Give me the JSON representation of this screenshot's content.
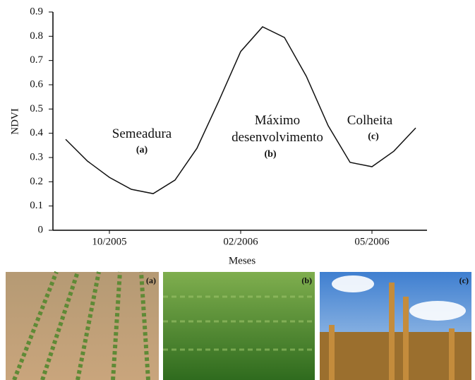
{
  "chart_data": {
    "type": "line",
    "y_label": "NDVI",
    "x_label": "Meses",
    "categories": [
      null,
      null,
      "10/2005",
      null,
      null,
      null,
      null,
      null,
      "02/2006",
      null,
      null,
      null,
      null,
      null,
      "05/2006",
      null,
      null
    ],
    "values": [
      0.375,
      0.285,
      0.218,
      0.169,
      0.151,
      0.207,
      0.338,
      0.533,
      0.737,
      0.839,
      0.795,
      0.635,
      0.431,
      0.28,
      0.262,
      0.326,
      0.422
    ],
    "color": "#111111",
    "ylim": [
      0,
      0.9
    ],
    "yticks": [
      0,
      0.1,
      0.2,
      0.3,
      0.4,
      0.5,
      0.6,
      0.7,
      0.8,
      0.9
    ],
    "annotations": [
      "Semeadura",
      "(a)",
      "Máximo",
      "desenvolvimento",
      "(b)",
      "Colheita",
      "(c)"
    ]
  },
  "photos": [
    {
      "label": "(a)"
    },
    {
      "label": "(b)"
    },
    {
      "label": "(c)"
    }
  ]
}
